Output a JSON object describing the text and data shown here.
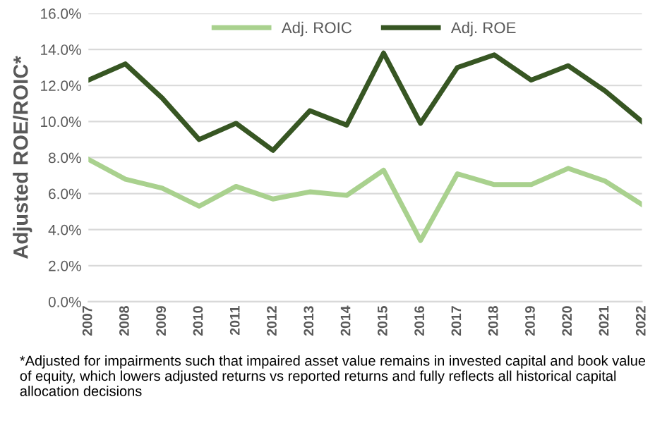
{
  "chart_data": {
    "type": "line",
    "ylabel": "Adjusted ROE/ROIC*",
    "categories": [
      "2007",
      "2008",
      "2009",
      "2010",
      "2011",
      "2012",
      "2013",
      "2014",
      "2015",
      "2016",
      "2017",
      "2018",
      "2019",
      "2020",
      "2021",
      "2022"
    ],
    "series": [
      {
        "name": "Adj. ROIC",
        "color": "#a9d18e",
        "values": [
          7.9,
          6.8,
          6.3,
          5.3,
          6.4,
          5.7,
          6.1,
          5.9,
          7.3,
          3.4,
          7.1,
          6.5,
          6.5,
          7.4,
          6.7,
          5.4
        ]
      },
      {
        "name": "Adj. ROE",
        "color": "#375623",
        "values": [
          12.3,
          13.2,
          11.3,
          9.0,
          9.9,
          8.4,
          10.6,
          9.8,
          13.8,
          9.9,
          13.0,
          13.7,
          12.3,
          13.1,
          11.7,
          10.0
        ]
      }
    ],
    "ylim": [
      0,
      16
    ],
    "yticks": [
      {
        "value": 0,
        "label": "0.0%"
      },
      {
        "value": 2,
        "label": "2.0%"
      },
      {
        "value": 4,
        "label": "4.0%"
      },
      {
        "value": 6,
        "label": "6.0%"
      },
      {
        "value": 8,
        "label": "8.0%"
      },
      {
        "value": 10,
        "label": "10.0%"
      },
      {
        "value": 12,
        "label": "12.0%"
      },
      {
        "value": 14,
        "label": "14.0%"
      },
      {
        "value": 16,
        "label": "16.0%"
      }
    ],
    "grid": "y",
    "legend": "top",
    "marker": "none",
    "line_style": "solid",
    "annotations": [
      "*Adjusted for impairments such that impaired asset value remains in invested capital and book value of equity, which lowers adjusted returns vs reported returns and fully reflects all historical capital allocation decisions"
    ]
  }
}
